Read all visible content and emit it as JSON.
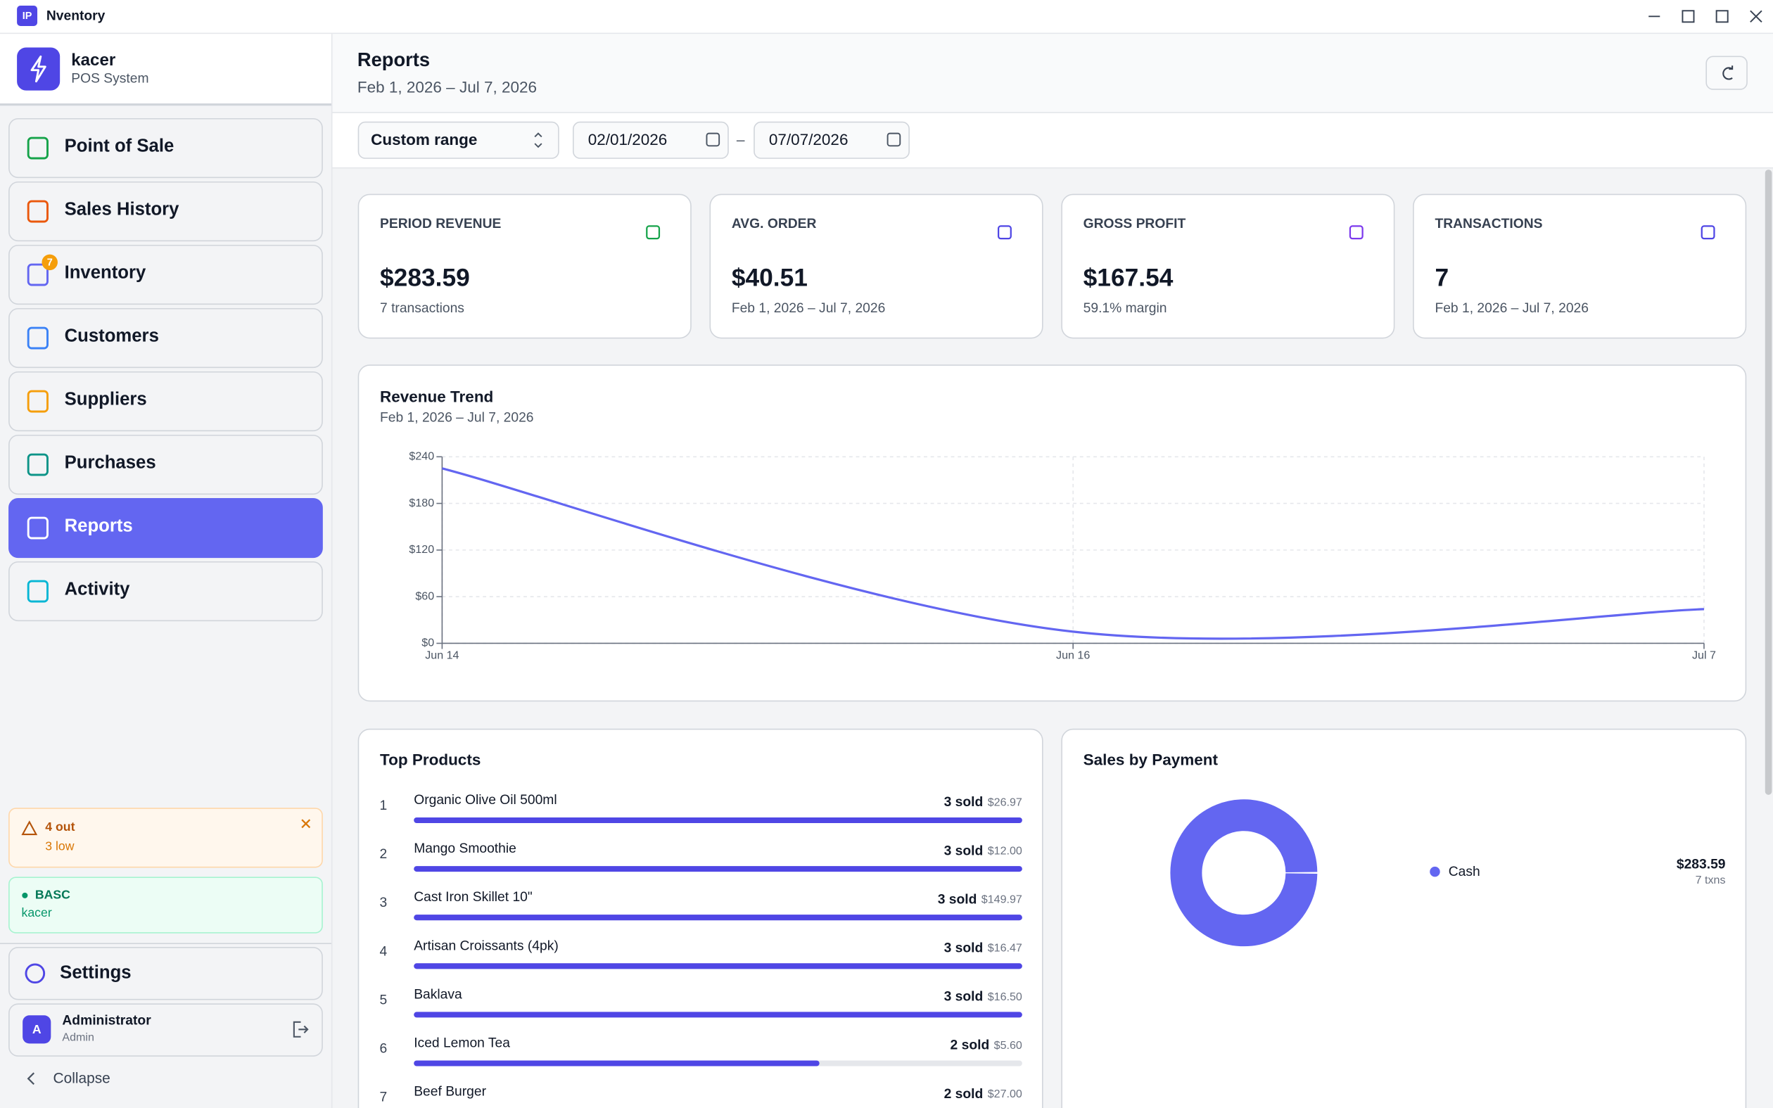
{
  "window": {
    "badge": "IP",
    "title": "Nventory"
  },
  "brand": {
    "name": "kacer",
    "subtitle": "POS System"
  },
  "nav": [
    "Point of Sale",
    "Sales History",
    "Inventory",
    "Customers",
    "Suppliers",
    "Purchases",
    "Reports",
    "Activity"
  ],
  "inventory_badge": "7",
  "alert": {
    "title": "4 out",
    "detail": "3 low"
  },
  "plan": {
    "title": "BASC",
    "user": "kacer"
  },
  "settings": "Settings",
  "user": {
    "initial": "A",
    "name": "Administrator",
    "role": "Admin"
  },
  "collapse": "Collapse",
  "header": {
    "title": "Reports",
    "range": "Feb 1, 2026 – Jul 7, 2026"
  },
  "filters": {
    "preset": "Custom range",
    "from": "02/01/2026",
    "separator": "–",
    "to": "07/07/2026"
  },
  "stats": [
    {
      "label": "PERIOD REVENUE",
      "value": "$283.59",
      "note": "7 transactions"
    },
    {
      "label": "AVG. ORDER",
      "value": "$40.51",
      "note": "Feb 1, 2026 – Jul 7, 2026"
    },
    {
      "label": "GROSS PROFIT",
      "value": "$167.54",
      "note": "59.1% margin"
    },
    {
      "label": "TRANSACTIONS",
      "value": "7",
      "note": "Feb 1, 2026 – Jul 7, 2026"
    }
  ],
  "chart_data": [
    {
      "type": "line",
      "title": "Revenue Trend",
      "subtitle": "Feb 1, 2026 – Jul 7, 2026",
      "categories": [
        "Jun 14",
        "Jun 16",
        "Jul 7"
      ],
      "values": [
        225,
        15,
        44
      ],
      "color": "#6366f1",
      "ylim": [
        0,
        240
      ],
      "yticks": [
        {
          "value": 0,
          "label": "$0"
        },
        {
          "value": 60,
          "label": "$60"
        },
        {
          "value": 120,
          "label": "$120"
        },
        {
          "value": 180,
          "label": "$180"
        },
        {
          "value": 240,
          "label": "$240"
        }
      ],
      "grid": true
    },
    {
      "type": "hbar",
      "title": "Top Products",
      "ranks": [
        1,
        2,
        3,
        4,
        5,
        6,
        7
      ],
      "categories": [
        "Organic Olive Oil 500ml",
        "Mango Smoothie",
        "Cast Iron Skillet 10\"",
        "Artisan Croissants (4pk)",
        "Baklava",
        "Iced Lemon Tea",
        "Beef Burger"
      ],
      "values": [
        3,
        3,
        3,
        3,
        3,
        2,
        2
      ],
      "value_labels": [
        "3 sold",
        "3 sold",
        "3 sold",
        "3 sold",
        "3 sold",
        "2 sold",
        "2 sold"
      ],
      "revenue_labels": [
        "$26.97",
        "$12.00",
        "$149.97",
        "$16.47",
        "$16.50",
        "$5.60",
        "$27.00"
      ],
      "xlim": [
        0,
        3
      ],
      "color": "#4f46e5"
    },
    {
      "type": "pie",
      "title": "Sales by Payment",
      "categories": [
        "Cash"
      ],
      "values": [
        283.59
      ],
      "value_labels": [
        "$283.59"
      ],
      "count_labels": [
        "7 txns"
      ],
      "colors": [
        "#6366f1"
      ]
    }
  ]
}
